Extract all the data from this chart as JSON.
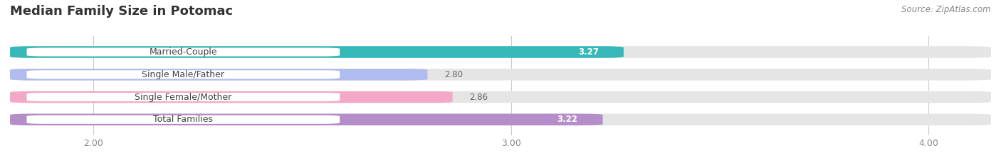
{
  "title": "Median Family Size in Potomac",
  "source": "Source: ZipAtlas.com",
  "categories": [
    "Married-Couple",
    "Single Male/Father",
    "Single Female/Mother",
    "Total Families"
  ],
  "values": [
    3.27,
    2.8,
    2.86,
    3.22
  ],
  "bar_colors": [
    "#36b8b8",
    "#b0bcee",
    "#f4a8c7",
    "#b48ec8"
  ],
  "xmin": 1.8,
  "xmax": 4.15,
  "xticks": [
    2.0,
    3.0,
    4.0
  ],
  "xtick_labels": [
    "2.00",
    "3.00",
    "4.00"
  ],
  "background_color": "#ffffff",
  "bar_bg_color": "#e5e5e5",
  "title_fontsize": 13,
  "source_fontsize": 8.5,
  "bar_height": 0.52,
  "value_fontsize": 8.5,
  "label_fontsize": 9,
  "label_bg_color": "#ffffff",
  "value_inside_colors": [
    "#ffffff",
    "#555555",
    "#555555",
    "#ffffff"
  ]
}
